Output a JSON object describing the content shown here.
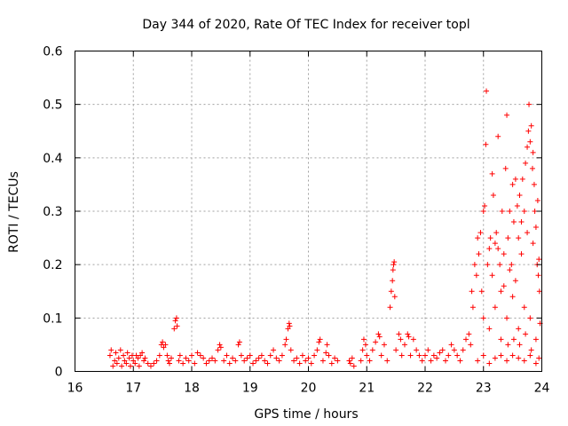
{
  "chart_data": {
    "type": "scatter",
    "title": "Day 344 of 2020, Rate Of TEC Index for receiver topl",
    "xlabel": "GPS time / hours",
    "ylabel": "ROTI / TECUs",
    "xlim": [
      16,
      24
    ],
    "ylim": [
      0,
      0.6
    ],
    "xticks": [
      "16",
      "17",
      "18",
      "19",
      "20",
      "21",
      "22",
      "23",
      "24"
    ],
    "yticks": [
      "0",
      "0.1",
      "0.2",
      "0.3",
      "0.4",
      "0.5",
      "0.6"
    ],
    "grid": true,
    "marker": "+",
    "color": "#ff0000",
    "series": [
      {
        "name": "ROTI",
        "points": [
          [
            16.6,
            0.03
          ],
          [
            16.62,
            0.04
          ],
          [
            16.65,
            0.01
          ],
          [
            16.68,
            0.02
          ],
          [
            16.7,
            0.035
          ],
          [
            16.72,
            0.015
          ],
          [
            16.75,
            0.025
          ],
          [
            16.78,
            0.04
          ],
          [
            16.8,
            0.01
          ],
          [
            16.83,
            0.03
          ],
          [
            16.85,
            0.02
          ],
          [
            16.88,
            0.015
          ],
          [
            16.9,
            0.035
          ],
          [
            16.93,
            0.025
          ],
          [
            16.95,
            0.01
          ],
          [
            16.98,
            0.03
          ],
          [
            17.0,
            0.02
          ],
          [
            17.03,
            0.015
          ],
          [
            17.05,
            0.03
          ],
          [
            17.08,
            0.025
          ],
          [
            17.1,
            0.01
          ],
          [
            17.12,
            0.03
          ],
          [
            17.15,
            0.035
          ],
          [
            17.18,
            0.02
          ],
          [
            17.2,
            0.025
          ],
          [
            17.25,
            0.015
          ],
          [
            17.3,
            0.01
          ],
          [
            17.35,
            0.015
          ],
          [
            17.4,
            0.02
          ],
          [
            17.45,
            0.03
          ],
          [
            17.48,
            0.05
          ],
          [
            17.5,
            0.055
          ],
          [
            17.52,
            0.045
          ],
          [
            17.55,
            0.05
          ],
          [
            17.58,
            0.03
          ],
          [
            17.6,
            0.02
          ],
          [
            17.62,
            0.015
          ],
          [
            17.65,
            0.025
          ],
          [
            17.7,
            0.08
          ],
          [
            17.72,
            0.095
          ],
          [
            17.74,
            0.1
          ],
          [
            17.75,
            0.085
          ],
          [
            17.78,
            0.02
          ],
          [
            17.8,
            0.03
          ],
          [
            17.85,
            0.015
          ],
          [
            17.9,
            0.025
          ],
          [
            17.95,
            0.02
          ],
          [
            18.0,
            0.03
          ],
          [
            18.05,
            0.015
          ],
          [
            18.1,
            0.035
          ],
          [
            18.15,
            0.03
          ],
          [
            18.2,
            0.025
          ],
          [
            18.25,
            0.015
          ],
          [
            18.3,
            0.02
          ],
          [
            18.35,
            0.025
          ],
          [
            18.4,
            0.02
          ],
          [
            18.45,
            0.04
          ],
          [
            18.48,
            0.05
          ],
          [
            18.5,
            0.045
          ],
          [
            18.55,
            0.02
          ],
          [
            18.6,
            0.03
          ],
          [
            18.65,
            0.015
          ],
          [
            18.7,
            0.025
          ],
          [
            18.75,
            0.02
          ],
          [
            18.8,
            0.05
          ],
          [
            18.82,
            0.055
          ],
          [
            18.85,
            0.03
          ],
          [
            18.9,
            0.02
          ],
          [
            18.95,
            0.025
          ],
          [
            19.0,
            0.03
          ],
          [
            19.05,
            0.015
          ],
          [
            19.1,
            0.02
          ],
          [
            19.15,
            0.025
          ],
          [
            19.2,
            0.03
          ],
          [
            19.25,
            0.02
          ],
          [
            19.3,
            0.015
          ],
          [
            19.35,
            0.03
          ],
          [
            19.4,
            0.04
          ],
          [
            19.45,
            0.025
          ],
          [
            19.5,
            0.02
          ],
          [
            19.55,
            0.03
          ],
          [
            19.6,
            0.05
          ],
          [
            19.62,
            0.06
          ],
          [
            19.65,
            0.08
          ],
          [
            19.67,
            0.09
          ],
          [
            19.68,
            0.085
          ],
          [
            19.7,
            0.04
          ],
          [
            19.75,
            0.02
          ],
          [
            19.8,
            0.025
          ],
          [
            19.85,
            0.015
          ],
          [
            19.9,
            0.03
          ],
          [
            19.95,
            0.02
          ],
          [
            20.0,
            0.025
          ],
          [
            20.05,
            0.015
          ],
          [
            20.1,
            0.03
          ],
          [
            20.15,
            0.04
          ],
          [
            20.18,
            0.055
          ],
          [
            20.2,
            0.06
          ],
          [
            20.25,
            0.02
          ],
          [
            20.3,
            0.035
          ],
          [
            20.32,
            0.05
          ],
          [
            20.35,
            0.03
          ],
          [
            20.4,
            0.015
          ],
          [
            20.45,
            0.025
          ],
          [
            20.5,
            0.02
          ],
          [
            20.7,
            0.02
          ],
          [
            20.72,
            0.015
          ],
          [
            20.75,
            0.025
          ],
          [
            20.78,
            0.01
          ],
          [
            20.9,
            0.02
          ],
          [
            20.93,
            0.04
          ],
          [
            20.95,
            0.06
          ],
          [
            20.98,
            0.05
          ],
          [
            21.0,
            0.03
          ],
          [
            21.05,
            0.02
          ],
          [
            21.1,
            0.04
          ],
          [
            21.15,
            0.055
          ],
          [
            21.2,
            0.07
          ],
          [
            21.22,
            0.065
          ],
          [
            21.25,
            0.03
          ],
          [
            21.3,
            0.05
          ],
          [
            21.35,
            0.02
          ],
          [
            21.4,
            0.12
          ],
          [
            21.42,
            0.15
          ],
          [
            21.44,
            0.17
          ],
          [
            21.45,
            0.19
          ],
          [
            21.46,
            0.2
          ],
          [
            21.47,
            0.205
          ],
          [
            21.48,
            0.14
          ],
          [
            21.5,
            0.04
          ],
          [
            21.55,
            0.07
          ],
          [
            21.58,
            0.06
          ],
          [
            21.6,
            0.03
          ],
          [
            21.65,
            0.05
          ],
          [
            21.7,
            0.07
          ],
          [
            21.72,
            0.065
          ],
          [
            21.75,
            0.03
          ],
          [
            21.8,
            0.06
          ],
          [
            21.85,
            0.04
          ],
          [
            21.9,
            0.03
          ],
          [
            21.95,
            0.02
          ],
          [
            22.0,
            0.03
          ],
          [
            22.05,
            0.04
          ],
          [
            22.1,
            0.02
          ],
          [
            22.15,
            0.03
          ],
          [
            22.2,
            0.025
          ],
          [
            22.25,
            0.035
          ],
          [
            22.3,
            0.04
          ],
          [
            22.35,
            0.02
          ],
          [
            22.4,
            0.03
          ],
          [
            22.45,
            0.05
          ],
          [
            22.5,
            0.04
          ],
          [
            22.55,
            0.03
          ],
          [
            22.6,
            0.02
          ],
          [
            22.65,
            0.04
          ],
          [
            22.7,
            0.06
          ],
          [
            22.75,
            0.07
          ],
          [
            22.78,
            0.05
          ],
          [
            22.8,
            0.15
          ],
          [
            22.82,
            0.12
          ],
          [
            22.85,
            0.2
          ],
          [
            22.88,
            0.18
          ],
          [
            22.9,
            0.25
          ],
          [
            22.92,
            0.22
          ],
          [
            22.95,
            0.26
          ],
          [
            22.97,
            0.15
          ],
          [
            23.0,
            0.3
          ],
          [
            23.02,
            0.31
          ],
          [
            23.04,
            0.425
          ],
          [
            23.05,
            0.525
          ],
          [
            23.07,
            0.2
          ],
          [
            23.1,
            0.23
          ],
          [
            23.12,
            0.25
          ],
          [
            23.15,
            0.37
          ],
          [
            23.17,
            0.33
          ],
          [
            23.2,
            0.24
          ],
          [
            23.22,
            0.26
          ],
          [
            23.25,
            0.44
          ],
          [
            23.28,
            0.2
          ],
          [
            23.3,
            0.15
          ],
          [
            23.32,
            0.3
          ],
          [
            23.35,
            0.22
          ],
          [
            23.38,
            0.38
          ],
          [
            23.4,
            0.48
          ],
          [
            23.42,
            0.25
          ],
          [
            23.45,
            0.3
          ],
          [
            23.48,
            0.2
          ],
          [
            23.5,
            0.35
          ],
          [
            23.52,
            0.28
          ],
          [
            23.55,
            0.36
          ],
          [
            23.58,
            0.31
          ],
          [
            23.6,
            0.25
          ],
          [
            23.62,
            0.33
          ],
          [
            23.65,
            0.28
          ],
          [
            23.67,
            0.36
          ],
          [
            23.7,
            0.3
          ],
          [
            23.72,
            0.39
          ],
          [
            23.75,
            0.42
          ],
          [
            23.77,
            0.45
          ],
          [
            23.78,
            0.5
          ],
          [
            23.8,
            0.43
          ],
          [
            23.82,
            0.46
          ],
          [
            23.84,
            0.38
          ],
          [
            23.85,
            0.41
          ],
          [
            23.87,
            0.35
          ],
          [
            23.88,
            0.3
          ],
          [
            23.9,
            0.27
          ],
          [
            23.92,
            0.2
          ],
          [
            23.94,
            0.18
          ],
          [
            23.95,
            0.21
          ],
          [
            23.0,
            0.1
          ],
          [
            23.1,
            0.08
          ],
          [
            23.2,
            0.12
          ],
          [
            23.3,
            0.06
          ],
          [
            23.4,
            0.1
          ],
          [
            23.5,
            0.14
          ],
          [
            23.6,
            0.08
          ],
          [
            23.7,
            0.12
          ],
          [
            23.8,
            0.1
          ],
          [
            23.9,
            0.06
          ],
          [
            22.9,
            0.02
          ],
          [
            23.0,
            0.03
          ],
          [
            23.1,
            0.015
          ],
          [
            23.2,
            0.025
          ],
          [
            23.3,
            0.03
          ],
          [
            23.4,
            0.02
          ],
          [
            23.5,
            0.03
          ],
          [
            23.6,
            0.025
          ],
          [
            23.7,
            0.02
          ],
          [
            23.8,
            0.03
          ],
          [
            23.9,
            0.015
          ],
          [
            23.95,
            0.025
          ],
          [
            23.15,
            0.18
          ],
          [
            23.25,
            0.23
          ],
          [
            23.35,
            0.16
          ],
          [
            23.45,
            0.19
          ],
          [
            23.55,
            0.17
          ],
          [
            23.65,
            0.22
          ],
          [
            23.75,
            0.26
          ],
          [
            23.85,
            0.24
          ],
          [
            23.93,
            0.32
          ],
          [
            23.96,
            0.15
          ],
          [
            23.97,
            0.09
          ],
          [
            23.62,
            0.05
          ],
          [
            23.72,
            0.07
          ],
          [
            23.82,
            0.04
          ],
          [
            23.52,
            0.06
          ],
          [
            23.42,
            0.05
          ]
        ]
      }
    ]
  }
}
